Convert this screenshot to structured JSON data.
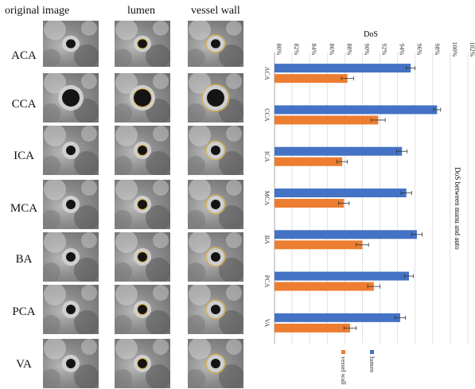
{
  "figure": {
    "column_headers": [
      "original image",
      "lumen",
      "vessel wall"
    ],
    "rows": [
      "ACA",
      "CCA",
      "ICA",
      "MCA",
      "BA",
      "PCA",
      "VA"
    ]
  },
  "chart_data": {
    "type": "bar",
    "orientation": "horizontal-rotated",
    "title": "DoS",
    "side_label": "DoS between manu and auto",
    "categories": [
      "ACA",
      "CCA",
      "ICA",
      "MCA",
      "BA",
      "PCA",
      "VA"
    ],
    "xlim": [
      80,
      102
    ],
    "ticks": [
      80,
      82,
      84,
      86,
      88,
      90,
      92,
      94,
      96,
      98,
      100,
      102
    ],
    "tick_labels": [
      "80%",
      "82%",
      "84%",
      "86%",
      "88%",
      "90%",
      "92%",
      "94%",
      "96%",
      "98%",
      "100%",
      "102%"
    ],
    "series": [
      {
        "name": "lumen",
        "color": "#4472c4",
        "values": [
          95.5,
          98.5,
          94.5,
          95.0,
          96.2,
          95.3,
          94.3
        ],
        "errors": [
          0.5,
          0.4,
          0.6,
          0.6,
          0.6,
          0.5,
          0.6
        ]
      },
      {
        "name": "vessel wall",
        "color": "#ed7d31",
        "values": [
          88.3,
          91.8,
          87.7,
          87.9,
          90.0,
          91.3,
          88.6
        ],
        "errors": [
          0.7,
          0.8,
          0.6,
          0.6,
          0.7,
          0.7,
          0.7
        ]
      }
    ],
    "legend": [
      "lumen",
      "vessel wall"
    ],
    "grid": true
  }
}
